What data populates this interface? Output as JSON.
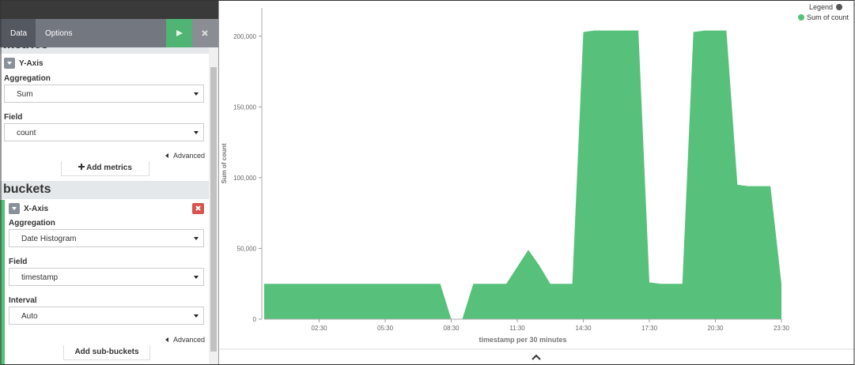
{
  "sidebar": {
    "tabs": [
      "Data",
      "Options"
    ],
    "metrics": {
      "title": "metrics",
      "agg_title": "Y-Axis",
      "aggregation_label": "Aggregation",
      "aggregation": "Sum",
      "field_label": "Field",
      "field": "count",
      "advanced": "Advanced",
      "add_button": "Add metrics"
    },
    "buckets": {
      "title": "buckets",
      "agg_title": "X-Axis",
      "aggregation_label": "Aggregation",
      "aggregation": "Date Histogram",
      "field_label": "Field",
      "field": "timestamp",
      "interval_label": "Interval",
      "interval": "Auto",
      "advanced": "Advanced",
      "add_button": "Add sub-buckets"
    }
  },
  "chart_data": {
    "type": "area",
    "legend_title": "Legend",
    "legend": "top-right",
    "xlabel": "timestamp per 30 minutes",
    "ylabel": "Sum of count",
    "x": [
      0,
      0.5,
      1,
      1.5,
      2,
      2.5,
      3,
      3.5,
      4,
      4.5,
      5,
      5.5,
      6,
      6.5,
      7,
      7.5,
      8,
      8.5,
      9,
      9.5,
      10,
      10.5,
      11,
      11.5,
      12,
      12.5,
      13,
      13.5,
      14,
      14.5,
      15,
      15.5,
      16,
      16.5,
      17,
      17.5,
      18,
      18.5,
      19,
      19.5,
      20,
      20.5,
      21,
      21.5,
      22,
      22.5,
      23,
      23.5
    ],
    "series": [
      {
        "name": "Sum of count",
        "color": "#57c17b",
        "values": [
          25000,
          25000,
          25000,
          25000,
          25000,
          25000,
          25000,
          25000,
          25000,
          25000,
          25000,
          25000,
          25000,
          25000,
          25000,
          25000,
          25000,
          0,
          0,
          25000,
          25000,
          25000,
          25000,
          37000,
          49000,
          38000,
          25000,
          25000,
          25000,
          203000,
          204000,
          204000,
          204000,
          204000,
          204000,
          26000,
          25000,
          25000,
          25000,
          203000,
          204000,
          204000,
          204000,
          95000,
          94000,
          94000,
          94000,
          25000
        ]
      }
    ],
    "xlim": [
      0,
      23.5
    ],
    "ylim": [
      0,
      220000
    ],
    "xticks": [
      {
        "value": 2.5,
        "label": "02:30"
      },
      {
        "value": 5.5,
        "label": "05:30"
      },
      {
        "value": 8.5,
        "label": "08:30"
      },
      {
        "value": 11.5,
        "label": "11:30"
      },
      {
        "value": 14.5,
        "label": "14:30"
      },
      {
        "value": 17.5,
        "label": "17:30"
      },
      {
        "value": 20.5,
        "label": "20:30"
      },
      {
        "value": 23.5,
        "label": "23:30"
      }
    ],
    "yticks": [
      0,
      {
        "value": 50000,
        "label": "50,000"
      },
      {
        "value": 100000,
        "label": "100,000"
      },
      {
        "value": 150000,
        "label": "150,000"
      },
      {
        "value": 200000,
        "label": "200,000"
      }
    ],
    "grid": false
  }
}
